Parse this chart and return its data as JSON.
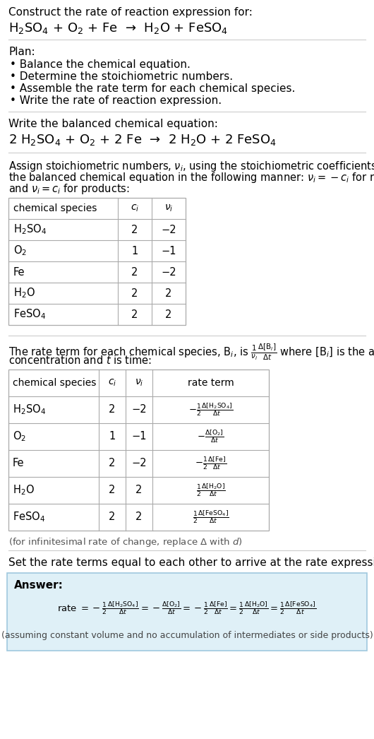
{
  "bg_color": "#ffffff",
  "text_color": "#000000",
  "section1_title": "Construct the rate of reaction expression for:",
  "section1_reaction": "H$_2$SO$_4$ + O$_2$ + Fe  →  H$_2$O + FeSO$_4$",
  "plan_title": "Plan:",
  "plan_items": [
    "• Balance the chemical equation.",
    "• Determine the stoichiometric numbers.",
    "• Assemble the rate term for each chemical species.",
    "• Write the rate of reaction expression."
  ],
  "balanced_eq_title": "Write the balanced chemical equation:",
  "balanced_eq": "2 H$_2$SO$_4$ + O$_2$ + 2 Fe  →  2 H$_2$O + 2 FeSO$_4$",
  "stoich_intro_lines": [
    "Assign stoichiometric numbers, $\\nu_i$, using the stoichiometric coefficients, $c_i$, from",
    "the balanced chemical equation in the following manner: $\\nu_i = -c_i$ for reactants",
    "and $\\nu_i = c_i$ for products:"
  ],
  "table1_headers": [
    "chemical species",
    "$c_i$",
    "$\\nu_i$"
  ],
  "table1_rows": [
    [
      "H$_2$SO$_4$",
      "2",
      "−2"
    ],
    [
      "O$_2$",
      "1",
      "−1"
    ],
    [
      "Fe",
      "2",
      "−2"
    ],
    [
      "H$_2$O",
      "2",
      "2"
    ],
    [
      "FeSO$_4$",
      "2",
      "2"
    ]
  ],
  "rate_term_intro_lines": [
    "The rate term for each chemical species, B$_i$, is $\\frac{1}{\\nu_i}\\frac{\\Delta[\\mathrm{B}_i]}{\\Delta t}$ where [B$_i$] is the amount",
    "concentration and $t$ is time:"
  ],
  "table2_headers": [
    "chemical species",
    "$c_i$",
    "$\\nu_i$",
    "rate term"
  ],
  "table2_rows": [
    [
      "H$_2$SO$_4$",
      "2",
      "−2",
      "$-\\frac{1}{2}\\frac{\\Delta[\\mathrm{H_2SO_4}]}{\\Delta t}$"
    ],
    [
      "O$_2$",
      "1",
      "−1",
      "$-\\frac{\\Delta[\\mathrm{O_2}]}{\\Delta t}$"
    ],
    [
      "Fe",
      "2",
      "−2",
      "$-\\frac{1}{2}\\frac{\\Delta[\\mathrm{Fe}]}{\\Delta t}$"
    ],
    [
      "H$_2$O",
      "2",
      "2",
      "$\\frac{1}{2}\\frac{\\Delta[\\mathrm{H_2O}]}{\\Delta t}$"
    ],
    [
      "FeSO$_4$",
      "2",
      "2",
      "$\\frac{1}{2}\\frac{\\Delta[\\mathrm{FeSO_4}]}{\\Delta t}$"
    ]
  ],
  "infinitesimal_note": "(for infinitesimal rate of change, replace Δ with $d$)",
  "set_equal_text": "Set the rate terms equal to each other to arrive at the rate expression:",
  "answer_box_color": "#dff0f7",
  "answer_border_color": "#a0c8de",
  "answer_label": "Answer:",
  "answer_rate_parts": [
    "rate $= -\\frac{1}{2}\\frac{\\Delta[\\mathrm{H_2SO_4}]}{\\Delta t} = -\\frac{\\Delta[\\mathrm{O_2}]}{\\Delta t} = -\\frac{1}{2}\\frac{\\Delta[\\mathrm{Fe}]}{\\Delta t} = \\frac{1}{2}\\frac{\\Delta[\\mathrm{H_2O}]}{\\Delta t} = \\frac{1}{2}\\frac{\\Delta[\\mathrm{FeSO_4}]}{\\Delta t}$"
  ],
  "answer_footnote": "(assuming constant volume and no accumulation of intermediates or side products)"
}
